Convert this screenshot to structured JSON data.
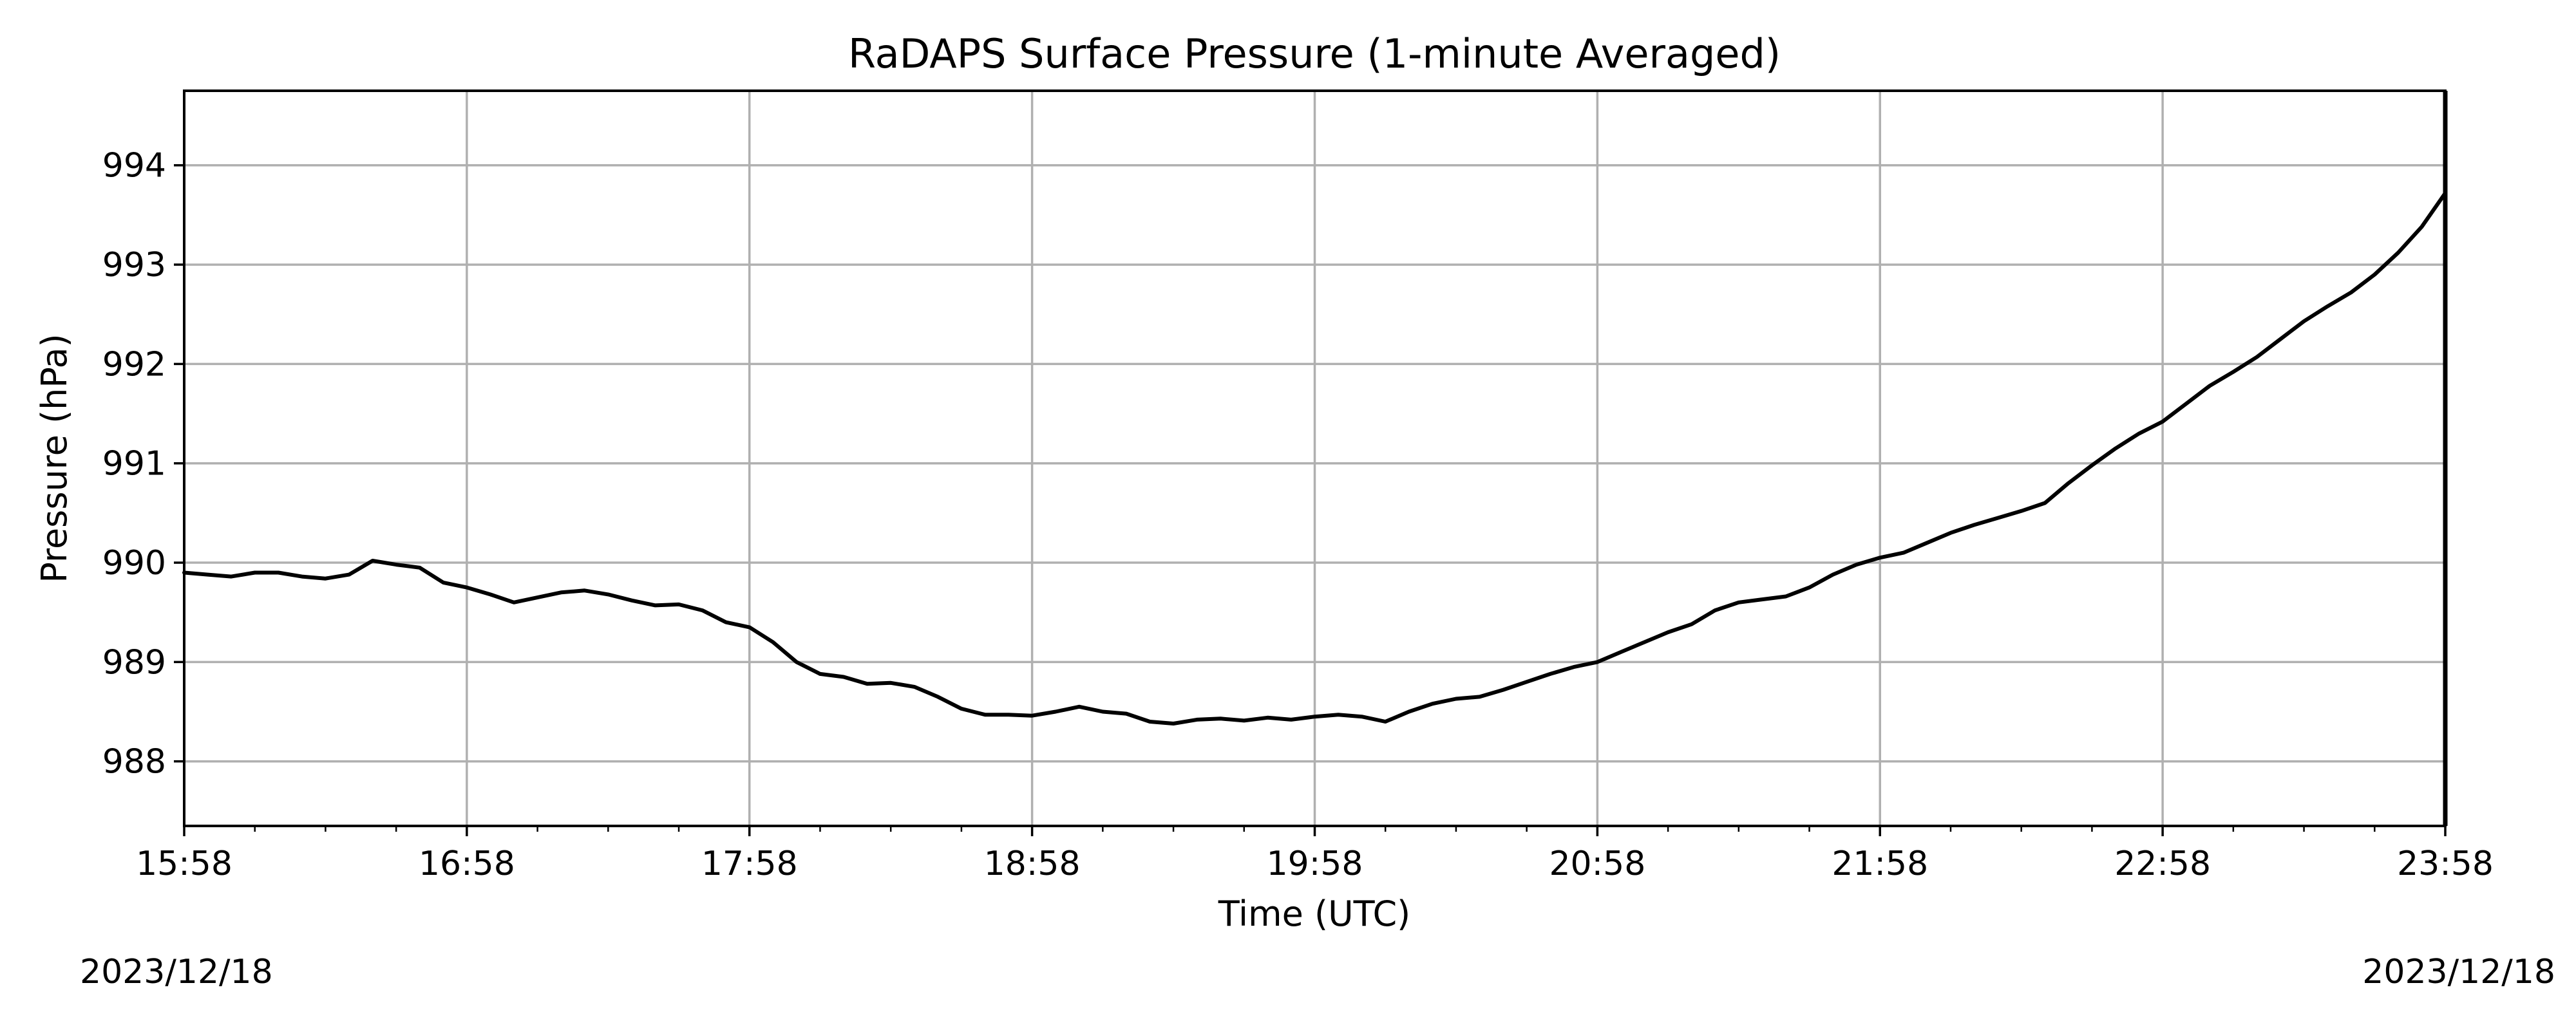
{
  "chart_data": {
    "type": "line",
    "title": "RaDAPS Surface Pressure (1-minute Averaged)",
    "xlabel": "Time (UTC)",
    "ylabel": "Pressure (hPa)",
    "grid": true,
    "xlim": [
      "15:58",
      "23:58"
    ],
    "ylim": [
      987.35,
      994.75
    ],
    "x_ticks": [
      "15:58",
      "16:58",
      "17:58",
      "18:58",
      "19:58",
      "20:58",
      "21:58",
      "22:58",
      "23:58"
    ],
    "y_ticks": [
      988,
      989,
      990,
      991,
      992,
      993,
      994
    ],
    "line_color": "#000000",
    "grid_color": "#b0b0b0",
    "series": [
      {
        "x": [
          "15:58",
          "16:03",
          "16:08",
          "16:13",
          "16:18",
          "16:23",
          "16:28",
          "16:33",
          "16:38",
          "16:43",
          "16:48",
          "16:53",
          "16:58",
          "17:03",
          "17:08",
          "17:13",
          "17:18",
          "17:23",
          "17:28",
          "17:33",
          "17:38",
          "17:43",
          "17:48",
          "17:53",
          "17:58",
          "18:03",
          "18:08",
          "18:13",
          "18:18",
          "18:23",
          "18:28",
          "18:33",
          "18:38",
          "18:43",
          "18:48",
          "18:53",
          "18:58",
          "19:03",
          "19:08",
          "19:13",
          "19:18",
          "19:23",
          "19:28",
          "19:33",
          "19:38",
          "19:43",
          "19:48",
          "19:53",
          "19:58",
          "20:03",
          "20:08",
          "20:13",
          "20:18",
          "20:23",
          "20:28",
          "20:33",
          "20:38",
          "20:43",
          "20:48",
          "20:53",
          "20:58",
          "21:03",
          "21:08",
          "21:13",
          "21:18",
          "21:23",
          "21:28",
          "21:33",
          "21:38",
          "21:43",
          "21:48",
          "21:53",
          "21:58",
          "22:03",
          "22:08",
          "22:13",
          "22:18",
          "22:23",
          "22:28",
          "22:33",
          "22:38",
          "22:43",
          "22:48",
          "22:53",
          "22:58",
          "23:03",
          "23:08",
          "23:13",
          "23:18",
          "23:23",
          "23:28",
          "23:33",
          "23:38",
          "23:43",
          "23:48",
          "23:53",
          "23:58"
        ],
        "values": [
          989.9,
          989.88,
          989.86,
          989.9,
          989.9,
          989.86,
          989.84,
          989.88,
          990.02,
          989.98,
          989.95,
          989.8,
          989.75,
          989.68,
          989.6,
          989.65,
          989.7,
          989.72,
          989.68,
          989.62,
          989.57,
          989.58,
          989.52,
          989.4,
          989.35,
          989.2,
          989.0,
          988.88,
          988.85,
          988.78,
          988.79,
          988.75,
          988.65,
          988.53,
          988.47,
          988.47,
          988.46,
          988.5,
          988.55,
          988.5,
          988.48,
          988.4,
          988.38,
          988.42,
          988.43,
          988.41,
          988.44,
          988.42,
          988.45,
          988.47,
          988.45,
          988.4,
          988.5,
          988.58,
          988.63,
          988.65,
          988.72,
          988.8,
          988.88,
          988.95,
          989.0,
          989.1,
          989.2,
          989.3,
          989.38,
          989.52,
          989.6,
          989.63,
          989.66,
          989.75,
          989.88,
          989.98,
          990.05,
          990.1,
          990.2,
          990.3,
          990.38,
          990.45,
          990.52,
          990.6,
          990.8,
          990.98,
          991.15,
          991.3,
          991.42,
          991.6,
          991.78,
          991.92,
          992.07,
          992.25,
          992.43,
          992.58,
          992.72,
          992.9,
          993.12,
          993.38,
          993.72
        ]
      }
    ]
  },
  "footer": {
    "date_left": "2023/12/18",
    "date_right": "2023/12/18"
  }
}
